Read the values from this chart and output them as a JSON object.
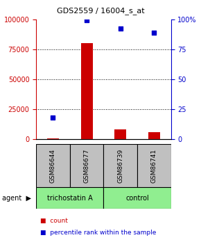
{
  "title": "GDS2559 / 16004_s_at",
  "samples": [
    "GSM86644",
    "GSM86677",
    "GSM86739",
    "GSM86741"
  ],
  "counts": [
    500,
    80000,
    8000,
    6000
  ],
  "percentile_ranks": [
    18,
    99,
    92,
    89
  ],
  "groups": [
    "trichostatin A",
    "trichostatin A",
    "control",
    "control"
  ],
  "group_colors": {
    "trichostatin A": "#90EE90",
    "control": "#90EE90"
  },
  "bar_color": "#CC0000",
  "dot_color": "#0000CC",
  "left_axis_color": "#CC0000",
  "right_axis_color": "#0000CC",
  "left_ylim": [
    0,
    100000
  ],
  "right_ylim": [
    0,
    100
  ],
  "left_yticks": [
    0,
    25000,
    50000,
    75000,
    100000
  ],
  "left_yticklabels": [
    "0",
    "25000",
    "50000",
    "75000",
    "100000"
  ],
  "right_yticks": [
    0,
    25,
    50,
    75,
    100
  ],
  "right_yticklabels": [
    "0",
    "25",
    "50",
    "75",
    "100%"
  ],
  "legend_count_label": "count",
  "legend_pct_label": "percentile rank within the sample",
  "agent_label": "agent",
  "group_label_trichostatin": "trichostatin A",
  "group_label_control": "control"
}
